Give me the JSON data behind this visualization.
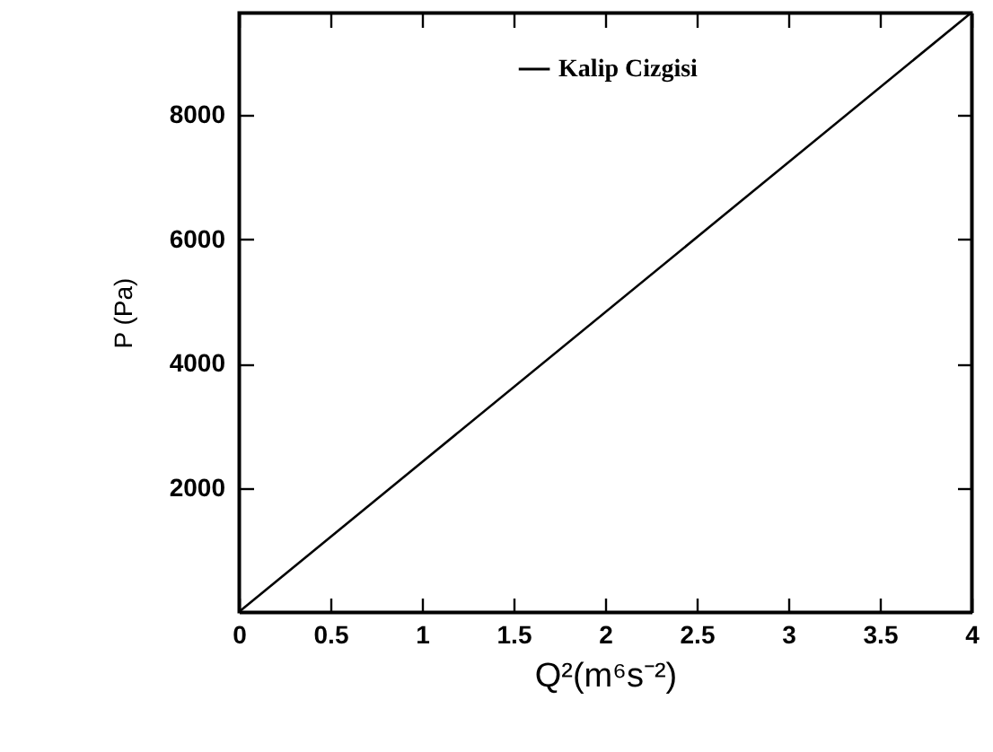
{
  "chart_data": {
    "type": "line",
    "xlabel": "Q²(m⁶s⁻²)",
    "ylabel": "P (Pa)",
    "x": [
      0,
      4
    ],
    "series": [
      {
        "name": "Kalip Cizgisi",
        "color": "#000000",
        "values": [
          0,
          9650
        ]
      }
    ],
    "xlim": [
      0,
      4
    ],
    "xticks": [
      0,
      0.5,
      1,
      1.5,
      2,
      2.5,
      3,
      3.5,
      4
    ],
    "ylim": [
      0,
      9650
    ],
    "yticks": [
      2000,
      4000,
      6000,
      8000
    ],
    "grid": false,
    "legend": "top right",
    "marker": "none",
    "line_style": "solid"
  }
}
